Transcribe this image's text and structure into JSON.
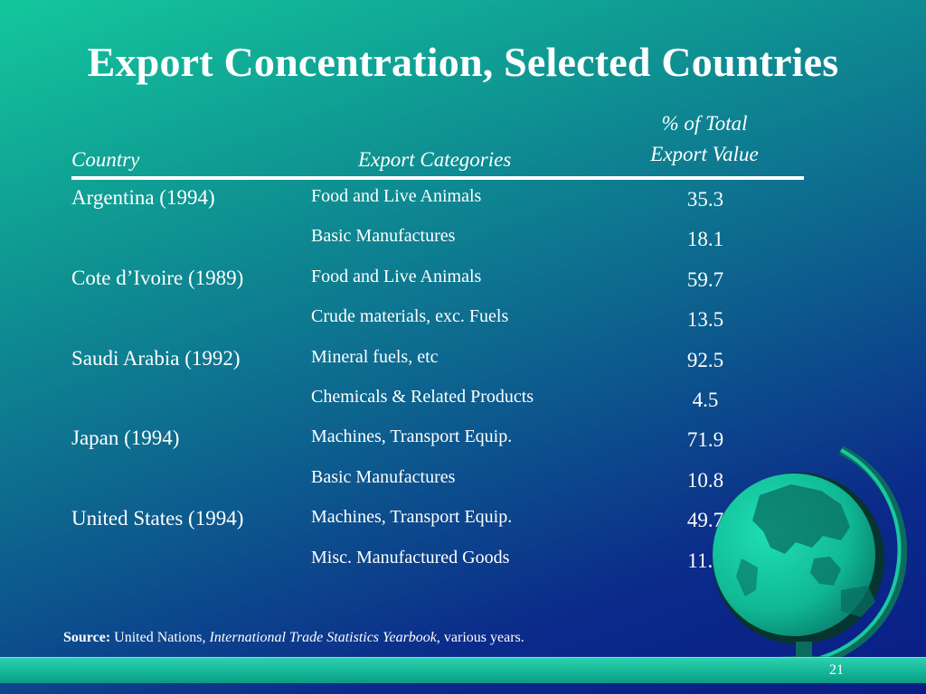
{
  "slide": {
    "title": "Export Concentration, Selected Countries",
    "page_number": "21"
  },
  "table": {
    "headers": {
      "country": "Country",
      "categories": "Export Categories",
      "pct_line1": "% of Total",
      "pct_line2": "Export Value"
    },
    "rows": [
      {
        "country": "Argentina (1994)",
        "category": "Food and Live Animals",
        "value": "35.3"
      },
      {
        "country": "",
        "category": "Basic Manufactures",
        "value": "18.1"
      },
      {
        "country": "Cote d’Ivoire (1989)",
        "category": "Food and Live Animals",
        "value": "59.7"
      },
      {
        "country": "",
        "category": "Crude materials, exc. Fuels",
        "value": "13.5"
      },
      {
        "country": "Saudi Arabia (1992)",
        "category": "Mineral fuels, etc",
        "value": "92.5"
      },
      {
        "country": "",
        "category": "Chemicals & Related Products",
        "value": "4.5"
      },
      {
        "country": "Japan (1994)",
        "category": "Machines, Transport Equip.",
        "value": "71.9"
      },
      {
        "country": "",
        "category": "Basic Manufactures",
        "value": "10.8"
      },
      {
        "country": "United States (1994)",
        "category": "Machines, Transport Equip.",
        "value": "49.7"
      },
      {
        "country": "",
        "category": "Misc. Manufactured Goods",
        "value": "11.1"
      }
    ]
  },
  "source": {
    "label": "Source:",
    "text_before": " United Nations, ",
    "publication": "International Trade Statistics Yearbook",
    "text_after": ", various years."
  },
  "decor": {
    "globe_icon": "globe-icon",
    "background_top": "#14c79c",
    "background_bottom": "#0a1d86",
    "globe_color": "#17c9a0"
  }
}
